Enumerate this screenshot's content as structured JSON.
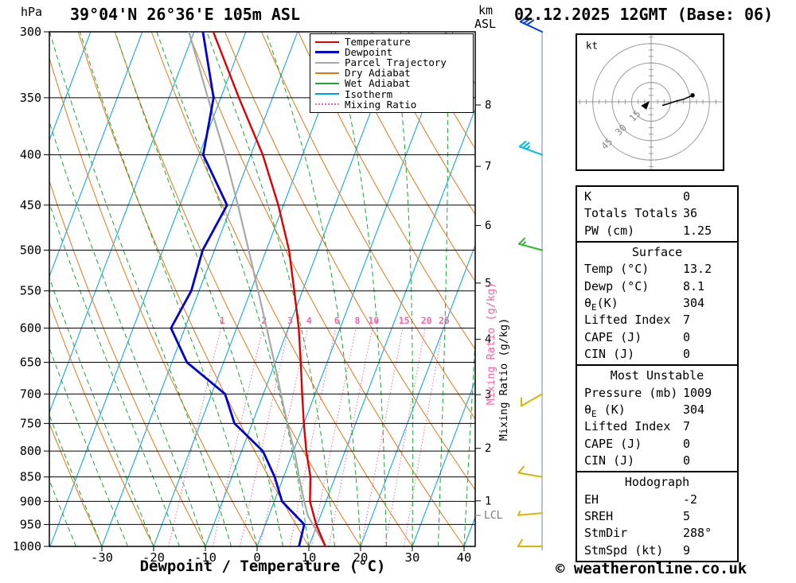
{
  "title": "39°04'N 26°36'E 105m ASL",
  "datetime": "02.12.2025 12GMT (Base: 06)",
  "copyright": "© weatheronline.co.uk",
  "axes": {
    "pressure_unit": "hPa",
    "altitude_unit_line1": "km",
    "altitude_unit_line2": "ASL",
    "pressure_ticks": [
      300,
      350,
      400,
      450,
      500,
      550,
      600,
      650,
      700,
      750,
      800,
      850,
      900,
      950,
      1000
    ],
    "x_label": "Dewpoint / Temperature (°C)",
    "x_ticks": [
      -30,
      -20,
      -10,
      0,
      10,
      20,
      30,
      40
    ],
    "mixing_ratio_label": "Mixing Ratio (g/kg)",
    "mixing_ratio_values": [
      1,
      2,
      3,
      4,
      6,
      8,
      10,
      15,
      20,
      25
    ],
    "lcl_label": "LCL"
  },
  "legend": {
    "items": [
      {
        "label": "Temperature",
        "color": "#dc0000",
        "style": "solid",
        "width": 2
      },
      {
        "label": "Dewpoint",
        "color": "#0000cd",
        "style": "solid",
        "width": 3
      },
      {
        "label": "Parcel Trajectory",
        "color": "#a8a8a8",
        "style": "solid",
        "width": 2
      },
      {
        "label": "Dry Adiabat",
        "color": "#e07818",
        "style": "solid",
        "width": 2
      },
      {
        "label": "Wet Adiabat",
        "color": "#18a830",
        "style": "solid",
        "width": 2
      },
      {
        "label": "Isotherm",
        "color": "#00a0dc",
        "style": "solid",
        "width": 2
      },
      {
        "label": "Mixing Ratio",
        "color": "#f068a8",
        "style": "dotted",
        "width": 2
      }
    ]
  },
  "colors": {
    "isotherm": "#00a0dc",
    "dry_adiabat": "#e07818",
    "wet_adiabat": "#18a830",
    "mixing_ratio": "#f068a8",
    "temperature": "#dc0000",
    "dewpoint": "#0000cd",
    "parcel": "#a8a8a8",
    "barb_axis": "#8899bb"
  },
  "chart_data": {
    "type": "line",
    "title": "Skew-T log-P sounding",
    "x_axis": {
      "label": "Dewpoint / Temperature (°C)",
      "surface_range_c": [
        -40,
        42
      ]
    },
    "y_axis": {
      "label": "hPa",
      "scale": "log",
      "range_hpa": [
        300,
        1000
      ]
    },
    "km_ticks": [
      {
        "km": 1,
        "p": 899
      },
      {
        "km": 2,
        "p": 795
      },
      {
        "km": 3,
        "p": 701
      },
      {
        "km": 4,
        "p": 616
      },
      {
        "km": 5,
        "p": 540
      },
      {
        "km": 6,
        "p": 472
      },
      {
        "km": 7,
        "p": 411
      },
      {
        "km": 8,
        "p": 356
      }
    ],
    "lcl_pressure_hpa": 930,
    "series": [
      {
        "name": "Temperature",
        "color": "#dc0000",
        "width": 2.4,
        "points_p_t": [
          [
            1000,
            13.2
          ],
          [
            950,
            9.8
          ],
          [
            900,
            6.9
          ],
          [
            850,
            5.2
          ],
          [
            800,
            2.5
          ],
          [
            750,
            0.0
          ],
          [
            700,
            -2.5
          ],
          [
            650,
            -5.1
          ],
          [
            600,
            -8.0
          ],
          [
            550,
            -11.6
          ],
          [
            500,
            -15.6
          ],
          [
            450,
            -21.0
          ],
          [
            400,
            -27.7
          ],
          [
            350,
            -36.5
          ],
          [
            300,
            -46.3
          ]
        ]
      },
      {
        "name": "Dewpoint",
        "color": "#0000cd",
        "width": 2.8,
        "points_p_t": [
          [
            1000,
            8.1
          ],
          [
            950,
            7.5
          ],
          [
            900,
            1.5
          ],
          [
            850,
            -1.7
          ],
          [
            800,
            -5.9
          ],
          [
            750,
            -13.4
          ],
          [
            700,
            -17.4
          ],
          [
            650,
            -27.1
          ],
          [
            600,
            -32.7
          ],
          [
            550,
            -31.5
          ],
          [
            500,
            -32.3
          ],
          [
            450,
            -30.9
          ],
          [
            400,
            -39.2
          ],
          [
            350,
            -41.4
          ],
          [
            300,
            -48.3
          ]
        ]
      },
      {
        "name": "Parcel Trajectory",
        "color": "#a8a8a8",
        "width": 2.2,
        "points_p_t": [
          [
            1000,
            13.2
          ],
          [
            930,
            7.5
          ],
          [
            900,
            5.8
          ],
          [
            850,
            3.0
          ],
          [
            800,
            0.2
          ],
          [
            750,
            -3.2
          ],
          [
            700,
            -6.6
          ],
          [
            650,
            -10.2
          ],
          [
            600,
            -14.2
          ],
          [
            550,
            -18.6
          ],
          [
            500,
            -23.4
          ],
          [
            450,
            -28.8
          ],
          [
            400,
            -35.0
          ],
          [
            350,
            -42.5
          ],
          [
            300,
            -51.0
          ]
        ]
      }
    ],
    "wind_barbs": [
      {
        "p": 300,
        "speed_kt": 30,
        "dir_deg": 295,
        "color": "#0040dd"
      },
      {
        "p": 400,
        "speed_kt": 25,
        "dir_deg": 290,
        "color": "#00b8e8"
      },
      {
        "p": 500,
        "speed_kt": 15,
        "dir_deg": 285,
        "color": "#30b830"
      },
      {
        "p": 700,
        "speed_kt": 10,
        "dir_deg": 240,
        "color": "#d4b800"
      },
      {
        "p": 850,
        "speed_kt": 10,
        "dir_deg": 280,
        "color": "#d4b800"
      },
      {
        "p": 925,
        "speed_kt": 5,
        "dir_deg": 265,
        "color": "#d4b800"
      },
      {
        "p": 1000,
        "speed_kt": 10,
        "dir_deg": 270,
        "color": "#d4b800"
      }
    ]
  },
  "hodograph": {
    "unit_label": "kt",
    "rings_kt": [
      15,
      30,
      45
    ],
    "trace_uv_kt": [
      [
        8.6,
        -2.8
      ],
      [
        13,
        -1.5
      ],
      [
        19,
        0.5
      ],
      [
        25,
        2
      ],
      [
        32,
        5
      ]
    ]
  },
  "table": {
    "sections": [
      {
        "rows": [
          {
            "label": "K",
            "value": "0"
          },
          {
            "label": "Totals Totals",
            "value": "36"
          },
          {
            "label": "PW (cm)",
            "value": "1.25"
          }
        ]
      },
      {
        "header": "Surface",
        "rows": [
          {
            "label": "Temp (°C)",
            "value": "13.2"
          },
          {
            "label": "Dewp (°C)",
            "value": "8.1"
          },
          {
            "label": "θ_E(K)",
            "value": "304"
          },
          {
            "label": "Lifted Index",
            "value": "7"
          },
          {
            "label": "CAPE (J)",
            "value": "0"
          },
          {
            "label": "CIN (J)",
            "value": "0"
          }
        ]
      },
      {
        "header": "Most Unstable",
        "rows": [
          {
            "label": "Pressure (mb)",
            "value": "1009"
          },
          {
            "label": "θ_E (K)",
            "value": "304"
          },
          {
            "label": "Lifted Index",
            "value": "7"
          },
          {
            "label": "CAPE (J)",
            "value": "0"
          },
          {
            "label": "CIN (J)",
            "value": "0"
          }
        ]
      },
      {
        "header": "Hodograph",
        "rows": [
          {
            "label": "EH",
            "value": "-2"
          },
          {
            "label": "SREH",
            "value": "5"
          },
          {
            "label": "StmDir",
            "value": "288°"
          },
          {
            "label": "StmSpd (kt)",
            "value": "9"
          }
        ]
      }
    ]
  }
}
